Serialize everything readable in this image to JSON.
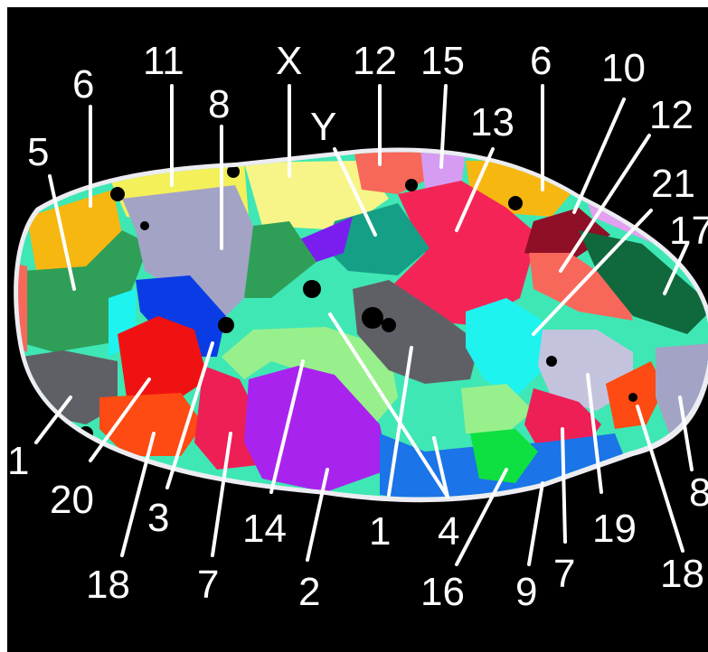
{
  "labels": [
    {
      "id": "l6a",
      "text": "6"
    },
    {
      "id": "l11",
      "text": "11"
    },
    {
      "id": "lX",
      "text": "X"
    },
    {
      "id": "l12a",
      "text": "12"
    },
    {
      "id": "l15",
      "text": "15"
    },
    {
      "id": "l6b",
      "text": "6"
    },
    {
      "id": "l10",
      "text": "10"
    },
    {
      "id": "l8a",
      "text": "8"
    },
    {
      "id": "lY",
      "text": "Y"
    },
    {
      "id": "l13",
      "text": "13"
    },
    {
      "id": "l12b",
      "text": "12"
    },
    {
      "id": "l5",
      "text": "5"
    },
    {
      "id": "l21",
      "text": "21"
    },
    {
      "id": "l17",
      "text": "17"
    },
    {
      "id": "l1a",
      "text": "1"
    },
    {
      "id": "l20",
      "text": "20"
    },
    {
      "id": "l3",
      "text": "3"
    },
    {
      "id": "l14",
      "text": "14"
    },
    {
      "id": "l1b",
      "text": "1"
    },
    {
      "id": "l4",
      "text": "4"
    },
    {
      "id": "l19",
      "text": "19"
    },
    {
      "id": "l8b",
      "text": "8"
    },
    {
      "id": "l18a",
      "text": "18"
    },
    {
      "id": "l7a",
      "text": "7"
    },
    {
      "id": "l2",
      "text": "2"
    },
    {
      "id": "l16",
      "text": "16"
    },
    {
      "id": "l9",
      "text": "9"
    },
    {
      "id": "l7b",
      "text": "7"
    },
    {
      "id": "l18b",
      "text": "18"
    }
  ],
  "colors": {
    "background": "#000000",
    "text": "#ffffff",
    "region_1": "#5f6066",
    "region_2": "#a923ee",
    "region_3": "#0a3ce6",
    "region_4": "#3fe7b4",
    "region_5": "#2f9f58",
    "region_6": "#f7b711",
    "region_7": "#ee1f55",
    "region_8": "#a3a3c6",
    "region_9": "#1b74e8",
    "region_10": "#8e0f26",
    "region_11": "#f3f05a",
    "region_12": "#f7685b",
    "region_13": "#f42556",
    "region_14": "#98f08c",
    "region_15": "#d69cf1",
    "region_16": "#0ee041",
    "region_17": "#10683d",
    "region_18": "#fe4a13",
    "region_19": "#c3c3de",
    "region_20": "#f01212",
    "region_21": "#1ef3f0",
    "region_X": "#f7f587",
    "region_Y": "#159f86"
  }
}
